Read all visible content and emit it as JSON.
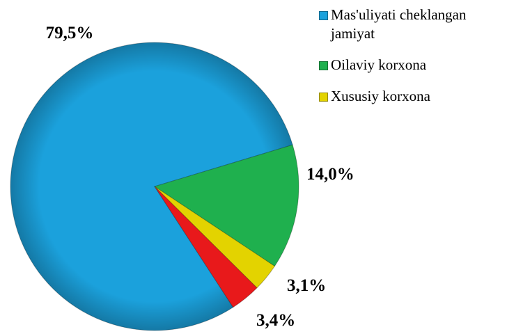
{
  "chart_data": {
    "type": "pie",
    "categories": [
      "Mas'uliyati cheklangan jamiyat",
      "Oilaviy korxona",
      "Xususiy korxona",
      null
    ],
    "values": [
      79.5,
      14.0,
      3.1,
      3.4
    ],
    "value_labels": [
      "79,5%",
      "14,0%",
      "3,1%",
      "3,4%"
    ],
    "colors": [
      "#1ba1dc",
      "#1fb04e",
      "#e3d300",
      "#e8191b"
    ],
    "legend": "top-right"
  }
}
